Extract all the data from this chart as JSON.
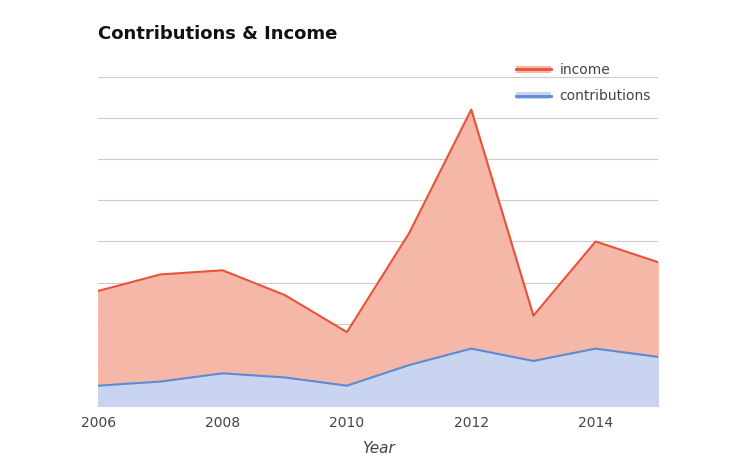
{
  "title": "Contributions & Income",
  "xlabel": "Year",
  "years": [
    2006,
    2007,
    2008,
    2009,
    2010,
    2011,
    2012,
    2013,
    2014,
    2015
  ],
  "income": [
    0.28,
    0.32,
    0.33,
    0.27,
    0.18,
    0.42,
    0.72,
    0.22,
    0.4,
    0.35
  ],
  "contributions": [
    0.05,
    0.06,
    0.08,
    0.07,
    0.05,
    0.1,
    0.14,
    0.11,
    0.14,
    0.12
  ],
  "income_line_color": "#e8533a",
  "income_fill_color": "#f5b8a8",
  "contributions_line_color": "#5b8bd4",
  "contributions_fill_color": "#c8d4f0",
  "background_color": "#ffffff",
  "grid_color": "#cccccc",
  "title_fontsize": 13,
  "axis_label_fontsize": 11,
  "tick_fontsize": 10,
  "ylim": [
    0,
    0.85
  ],
  "xlim": [
    2006,
    2015
  ],
  "xticks": [
    2006,
    2008,
    2010,
    2012,
    2014
  ]
}
